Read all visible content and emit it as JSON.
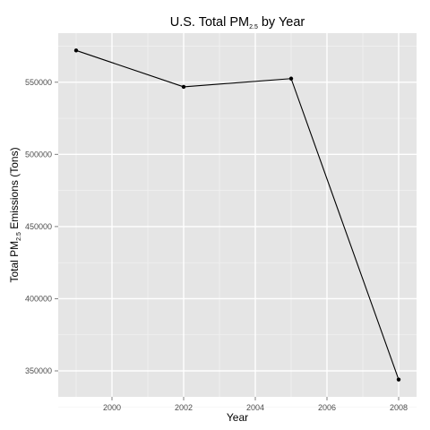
{
  "chart_data": {
    "type": "line",
    "title": {
      "prefix": "U.S. Total PM",
      "subscript": "2.5",
      "suffix": " by Year"
    },
    "xlabel": "Year",
    "ylabel": {
      "prefix": "Total PM",
      "subscript": "2.5",
      "suffix": " Emissions (Tons)"
    },
    "x": [
      1999,
      2002,
      2005,
      2008
    ],
    "series": [
      {
        "values": [
          572000,
          546800,
          552500,
          344000
        ]
      }
    ],
    "xlim": [
      1998.5,
      2008.5
    ],
    "ylim": [
      332000,
      584000
    ],
    "xticks": [
      2000,
      2002,
      2004,
      2006,
      2008
    ],
    "xtick_labels": [
      "2000",
      "2002",
      "2004",
      "2006",
      "2008"
    ],
    "yticks": [
      350000,
      400000,
      450000,
      500000,
      550000
    ],
    "ytick_labels": [
      "350000",
      "400000",
      "450000",
      "500000",
      "550000"
    ],
    "grid": true,
    "colors": {
      "panel_background": "#e5e5e5",
      "major_grid": "#ffffff",
      "minor_grid": "#f2f2f2",
      "line": "#000000",
      "point": "#000000"
    }
  }
}
